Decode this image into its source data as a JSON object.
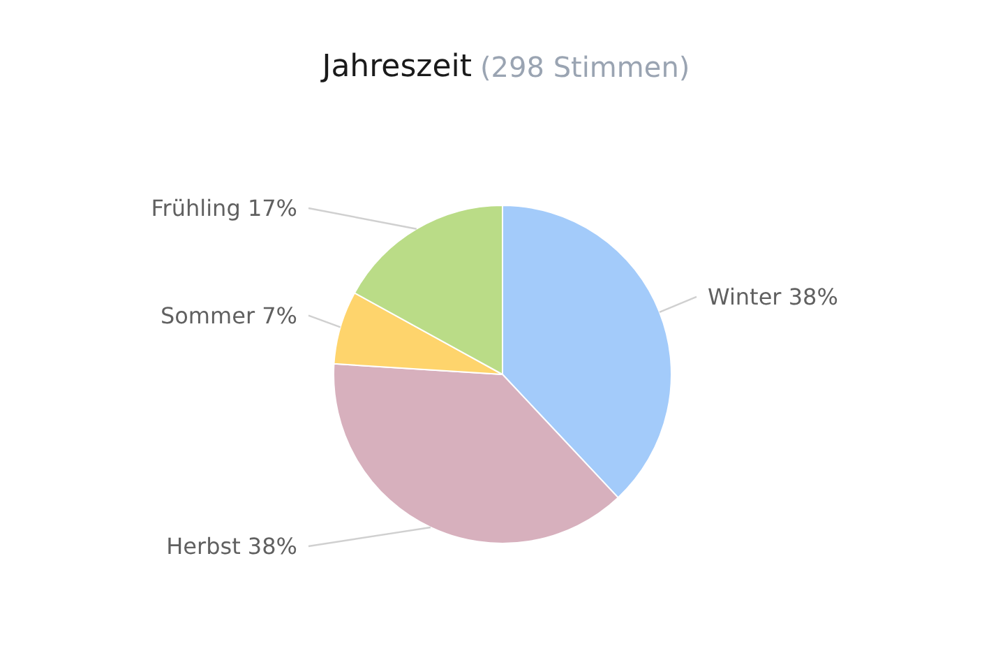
{
  "chart_data": {
    "type": "pie",
    "title": "Jahreszeit",
    "subtitle": "(298 Stimmen)",
    "categories": [
      "Winter",
      "Herbst",
      "Sommer",
      "Frühling"
    ],
    "values": [
      38,
      38,
      7,
      17
    ],
    "value_labels": [
      "38%",
      "38%",
      "7%",
      "17%"
    ],
    "colors": [
      "#a3cbfa",
      "#d7b0bd",
      "#fed46c",
      "#badc87"
    ]
  }
}
